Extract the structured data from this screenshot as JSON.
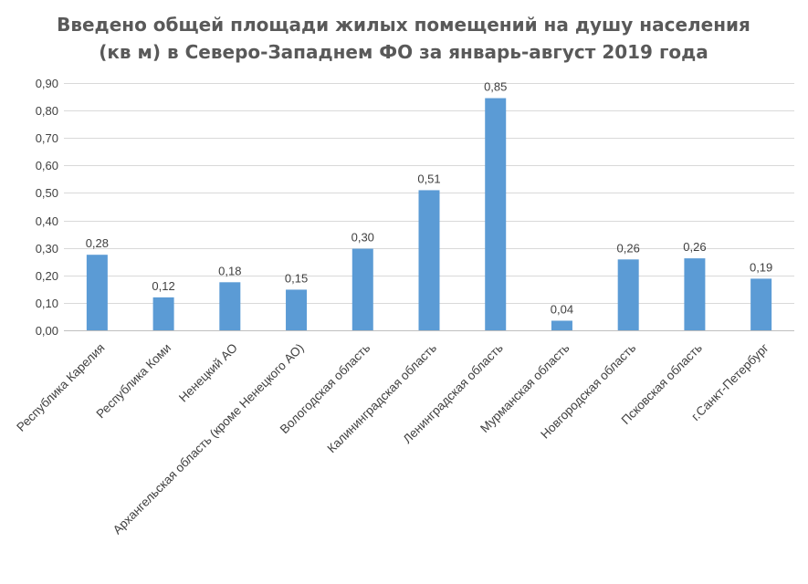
{
  "chart_data": {
    "type": "bar",
    "title_lines": [
      "Введено общей площади жилых помещений на душу населения",
      "(кв м) в Северо-Западнем ФО за январь-август 2019 года"
    ],
    "xlabel": "",
    "ylabel": "",
    "ylim": [
      0,
      0.9
    ],
    "yticks": [
      "0,00",
      "0,10",
      "0,20",
      "0,30",
      "0,40",
      "0,50",
      "0,60",
      "0,70",
      "0,80",
      "0,90"
    ],
    "grid": true,
    "legend": "none",
    "categories": [
      "Республика Карелия",
      "Республика Коми",
      "Ненецкий АО",
      "Архангельская область (кроме Ненецкого АО)",
      "Вологодская область",
      "Калининградская область",
      "Ленинградская область",
      "Мурманская  область",
      "Новгородская область",
      "Псковская  область",
      "г.Санкт-Петербург"
    ],
    "values": [
      0.275,
      0.12,
      0.175,
      0.148,
      0.297,
      0.51,
      0.845,
      0.035,
      0.258,
      0.262,
      0.188
    ],
    "data_labels": [
      "0,28",
      "0,12",
      "0,18",
      "0,15",
      "0,30",
      "0,51",
      "0,85",
      "0,04",
      "0,26",
      "0,26",
      "0,19"
    ],
    "bar_color": "#5b9bd5"
  }
}
